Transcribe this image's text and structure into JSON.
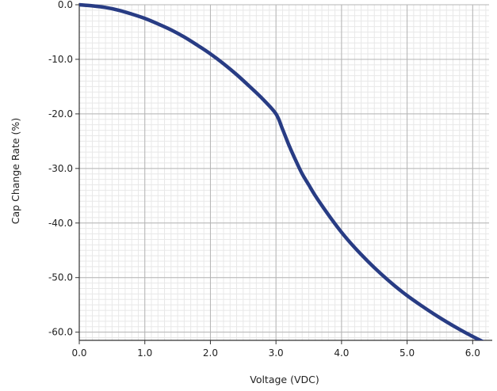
{
  "chart_data": {
    "type": "line",
    "title": "",
    "xlabel": "Voltage (VDC)",
    "ylabel": "Cap Change Rate (%)",
    "xlim": [
      0,
      6.25
    ],
    "ylim": [
      -61.5,
      0
    ],
    "x_ticks": [
      0,
      1,
      2,
      3,
      4,
      5,
      6
    ],
    "x_tick_labels": [
      "0.0",
      "1.0",
      "2.0",
      "3.0",
      "4.0",
      "5.0",
      "6.0"
    ],
    "y_ticks": [
      0,
      -10,
      -20,
      -30,
      -40,
      -50,
      -60
    ],
    "y_tick_labels": [
      "0.0",
      "-10.0",
      "-20.0",
      "-30.0",
      "-40.0",
      "-50.0",
      "-60.0"
    ],
    "minor_grid": true,
    "major_grid": true,
    "legend": "none",
    "series": [
      {
        "color": "#283c84",
        "x": [
          0,
          0.2,
          0.4,
          0.6,
          0.8,
          1.0,
          1.2,
          1.4,
          1.6,
          1.8,
          2.0,
          2.2,
          2.4,
          2.6,
          2.8,
          3.0,
          3.1,
          3.2,
          3.3,
          3.4,
          3.5,
          3.6,
          3.8,
          4.0,
          4.2,
          4.4,
          4.6,
          4.8,
          5.0,
          5.2,
          5.4,
          5.6,
          5.8,
          6.0,
          6.2
        ],
        "y": [
          0,
          -0.2,
          -0.5,
          -1.0,
          -1.7,
          -2.5,
          -3.5,
          -4.6,
          -5.9,
          -7.4,
          -9.0,
          -10.8,
          -12.8,
          -15.0,
          -17.3,
          -20.0,
          -22.8,
          -25.8,
          -28.5,
          -31.0,
          -33.0,
          -35.0,
          -38.5,
          -41.7,
          -44.5,
          -47.0,
          -49.3,
          -51.4,
          -53.3,
          -55.0,
          -56.6,
          -58.1,
          -59.5,
          -60.8,
          -62.0
        ]
      }
    ]
  }
}
